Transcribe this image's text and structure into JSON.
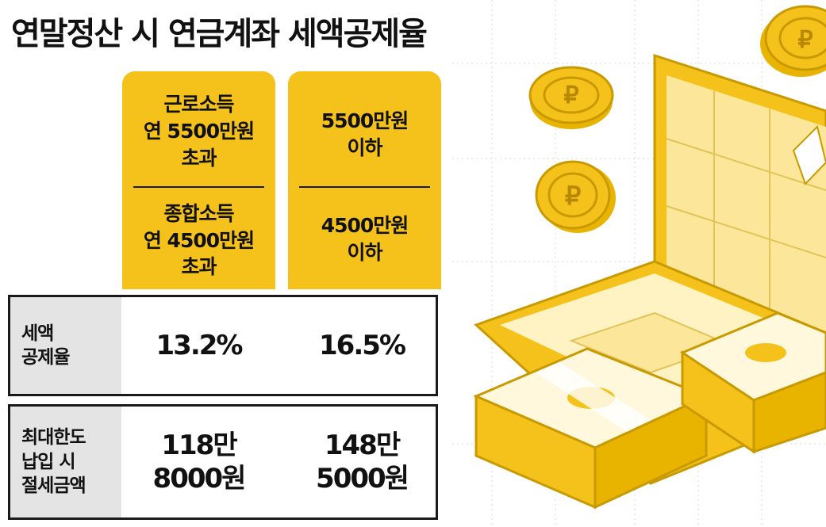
{
  "title": "연말정산 시 연금계좌 세액공제율",
  "columns": [
    {
      "top_label": "근로소득\n연 5500만원\n초과",
      "bottom_label": "종합소득\n연 4500만원\n초과"
    },
    {
      "top_label": "5500만원\n이하",
      "bottom_label": "4500만원\n이하"
    }
  ],
  "rows": [
    {
      "label": "세액\n공제율",
      "values": [
        "13.2%",
        "16.5%"
      ]
    },
    {
      "label": "최대한도\n납입 시\n절세금액",
      "values": [
        "118만\n8000원",
        "148만\n5000원"
      ]
    }
  ],
  "colors": {
    "accent_yellow": "#f5c21b",
    "label_gray": "#e4e4e4",
    "border": "#1a1a1a"
  },
  "illustration": {
    "icons": [
      "laptop-icon",
      "coin-icon",
      "cash-stack-icon"
    ]
  }
}
